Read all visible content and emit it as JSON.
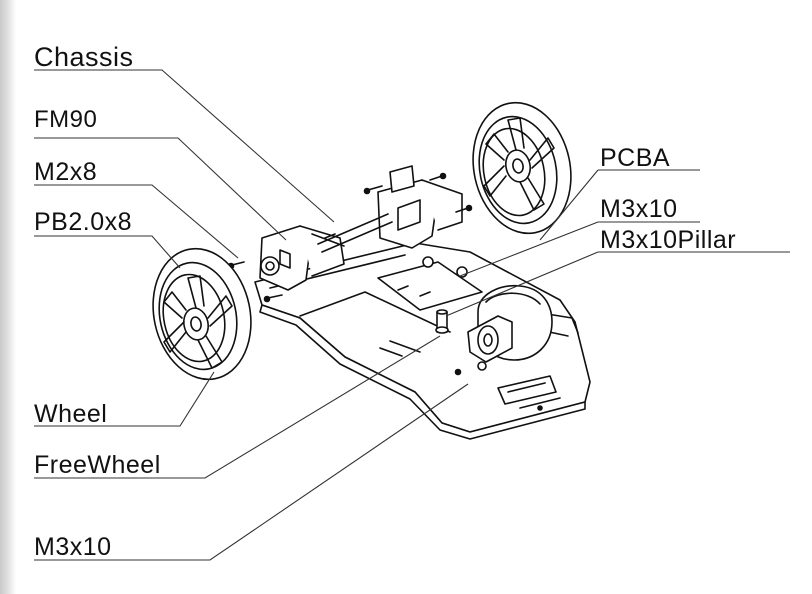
{
  "diagram": {
    "labels": {
      "chassis": "Chassis",
      "fm90": "FM90",
      "m2x8": "M2x8",
      "pb20x8": "PB2.0x8",
      "wheel": "Wheel",
      "freewheel": "FreeWheel",
      "m3x10_bottom": "M3x10",
      "pcba": "PCBA",
      "m3x10_right": "M3x10",
      "m3x10_pillar": "M3x10Pillar"
    },
    "colors": {
      "ink": "#111111",
      "leader": "#333333",
      "part_fill": "#ffffff"
    }
  }
}
